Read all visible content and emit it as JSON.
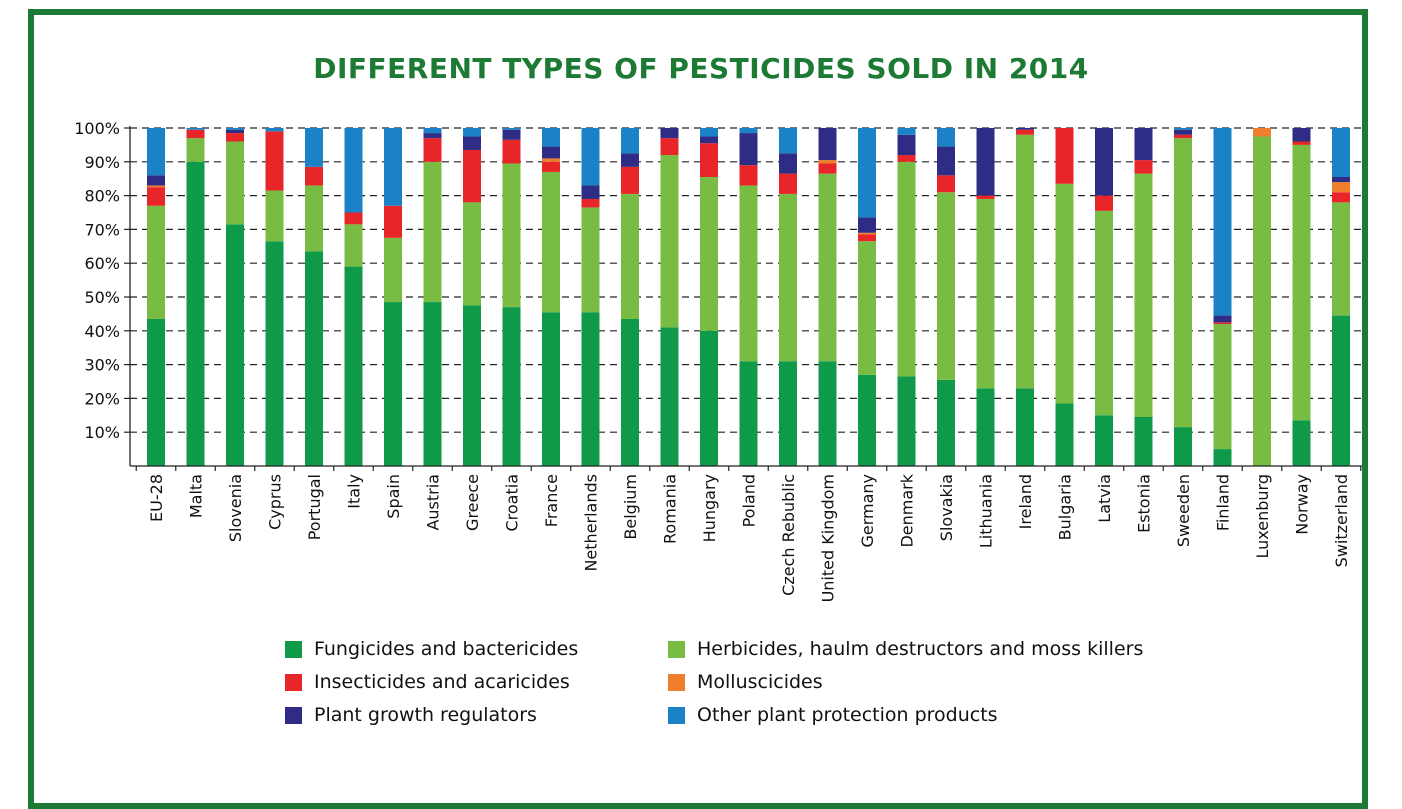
{
  "title": "DIFFERENT TYPES OF PESTICIDES SOLD IN 2014",
  "colors": {
    "frame": "#1c7a34",
    "title": "#1c7a34",
    "fungicides": "#0f9a4a",
    "herbicides": "#78bc44",
    "insecticides": "#e8262a",
    "molluscicides": "#f07f2d",
    "growth_regulators": "#2e2c84",
    "other": "#1b82c8"
  },
  "chart_data": {
    "type": "bar",
    "stacked": true,
    "ylim": [
      0,
      100
    ],
    "yticks": [
      "10%",
      "20%",
      "30%",
      "40%",
      "50%",
      "60%",
      "70%",
      "80%",
      "90%",
      "100%"
    ],
    "grid": true,
    "legend_position": "bottom",
    "categories": [
      "EU-28",
      "Malta",
      "Slovenia",
      "Cyprus",
      "Portugal",
      "Italy",
      "Spain",
      "Austria",
      "Greece",
      "Croatia",
      "France",
      "Netherlands",
      "Belgium",
      "Romania",
      "Hungary",
      "Poland",
      "Czech Rebublic",
      "United Kingdom",
      "Germany",
      "Denmark",
      "Slovakia",
      "Lithuania",
      "Ireland",
      "Bulgaria",
      "Latvia",
      "Estonia",
      "Sweeden",
      "Finland",
      "Luxenburg",
      "Norway",
      "Switzerland"
    ],
    "series": [
      {
        "name": "Fungicides and bactericides",
        "color_key": "fungicides",
        "values": [
          43.5,
          90,
          71.5,
          66.5,
          63.5,
          59,
          48.5,
          48.5,
          47.5,
          47,
          45.5,
          45.5,
          43.5,
          41,
          40,
          31,
          31,
          31,
          27,
          26.5,
          25.5,
          23,
          23,
          18.5,
          15,
          14.5,
          11.5,
          5,
          0,
          13.5,
          44.5
        ]
      },
      {
        "name": "Herbicides, haulm destructors and moss killers",
        "color_key": "herbicides",
        "values": [
          33.5,
          7,
          24.5,
          15,
          19.5,
          12.5,
          19,
          41.5,
          30.5,
          42.5,
          41.5,
          31,
          37,
          51,
          45.5,
          52,
          49.5,
          55.5,
          39.5,
          63.5,
          55.5,
          56,
          75,
          65,
          60.5,
          72,
          85.5,
          37,
          97.5,
          81.5,
          33.5
        ]
      },
      {
        "name": "Insecticides and acaricides",
        "color_key": "insecticides",
        "values": [
          5.5,
          2.5,
          2.5,
          17.5,
          5.5,
          3.5,
          9.5,
          7,
          15.5,
          7,
          3,
          2.5,
          8,
          5,
          10,
          6,
          6,
          3,
          2,
          2,
          5,
          1,
          1.5,
          16.5,
          4.5,
          4,
          1,
          0.5,
          0,
          1,
          3
        ]
      },
      {
        "name": "Molluscicides",
        "color_key": "molluscicides",
        "values": [
          0.5,
          0,
          0,
          0,
          0,
          0,
          0,
          0,
          0,
          0,
          1,
          0,
          0,
          0,
          0,
          0,
          0,
          1,
          0.5,
          0,
          0,
          0,
          0,
          0,
          0,
          0,
          0,
          0,
          2.5,
          0,
          3
        ]
      },
      {
        "name": "Plant growth regulators",
        "color_key": "growth_regulators",
        "values": [
          3,
          0,
          1,
          0,
          0,
          0,
          0,
          1.5,
          4,
          3,
          3.5,
          4,
          4,
          3,
          2,
          9.5,
          6,
          9.5,
          4.5,
          6,
          8.5,
          20,
          0.5,
          0,
          20,
          9.5,
          1.5,
          2,
          0,
          4,
          1.5
        ]
      },
      {
        "name": "Other plant protection products",
        "color_key": "other",
        "values": [
          14,
          0.5,
          0.5,
          1,
          11.5,
          25,
          23,
          1.5,
          2.5,
          0.5,
          5.5,
          17,
          7.5,
          0,
          2.5,
          1.5,
          7.5,
          0,
          26.5,
          2,
          5.5,
          0,
          0,
          0,
          0,
          0,
          0.5,
          55.5,
          0,
          0,
          14.5
        ]
      }
    ]
  },
  "legend": [
    {
      "label": "Fungicides and bactericides",
      "color_key": "fungicides"
    },
    {
      "label": "Herbicides, haulm destructors and moss killers",
      "color_key": "herbicides"
    },
    {
      "label": "Insecticides and acaricides",
      "color_key": "insecticides"
    },
    {
      "label": "Molluscicides",
      "color_key": "molluscicides"
    },
    {
      "label": "Plant growth regulators",
      "color_key": "growth_regulators"
    },
    {
      "label": "Other plant protection products",
      "color_key": "other"
    }
  ]
}
